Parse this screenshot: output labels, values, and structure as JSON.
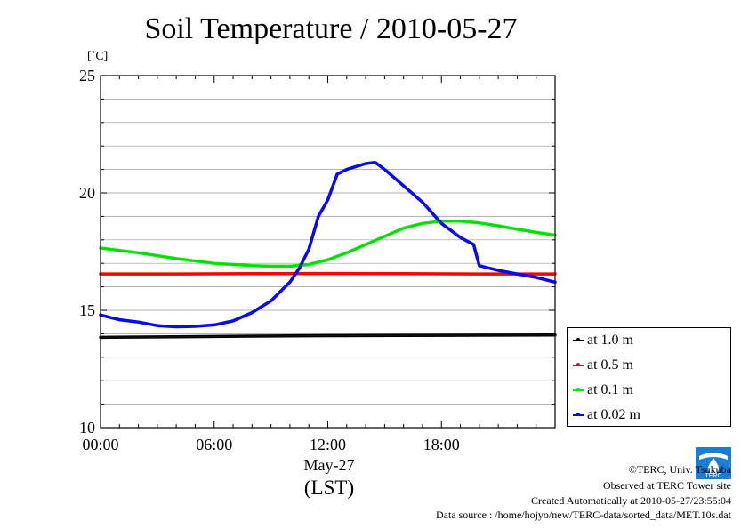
{
  "chart_data": {
    "type": "line",
    "title": "Soil Temperature / 2010-05-27",
    "ylabel": "[˚C]",
    "xlabel": "May-27",
    "xlabel2": "(LST)",
    "ylim": [
      10,
      25
    ],
    "xlim": [
      0,
      24
    ],
    "yticks": [
      "10",
      "15",
      "20",
      "25"
    ],
    "ytick_values": [
      10,
      15,
      20,
      25
    ],
    "xticks": [
      "00:00",
      "06:00",
      "12:00",
      "18:00"
    ],
    "xtick_values": [
      0,
      6,
      12,
      18
    ],
    "grid": true,
    "legend_position": "right-bottom",
    "series": [
      {
        "name": "at 1.0 m",
        "color": "#000000",
        "x": [
          0,
          4,
          8,
          12,
          16,
          20,
          24
        ],
        "y": [
          13.85,
          13.87,
          13.9,
          13.92,
          13.93,
          13.94,
          13.95
        ]
      },
      {
        "name": "at 0.5 m",
        "color": "#ff0000",
        "x": [
          0,
          4,
          8,
          12,
          16,
          20,
          24
        ],
        "y": [
          16.55,
          16.55,
          16.56,
          16.57,
          16.56,
          16.55,
          16.55
        ]
      },
      {
        "name": "at 0.1 m",
        "color": "#00ee00",
        "x": [
          0,
          2,
          4,
          6,
          8,
          9,
          10,
          11,
          12,
          13,
          14,
          15,
          16,
          17,
          18,
          19,
          20,
          21,
          22,
          23,
          24
        ],
        "y": [
          17.65,
          17.45,
          17.2,
          17.0,
          16.9,
          16.88,
          16.88,
          16.95,
          17.15,
          17.45,
          17.8,
          18.15,
          18.5,
          18.7,
          18.8,
          18.8,
          18.72,
          18.6,
          18.45,
          18.32,
          18.2
        ]
      },
      {
        "name": "at 0.02 m",
        "color": "#0000ff",
        "x": [
          0,
          1,
          2,
          3,
          4,
          5,
          6,
          7,
          8,
          9,
          10,
          10.5,
          11,
          11.5,
          12,
          12.5,
          13,
          14,
          14.5,
          15,
          16,
          17,
          18,
          19,
          19.7,
          20,
          21,
          22,
          23,
          24
        ],
        "y": [
          14.8,
          14.6,
          14.5,
          14.35,
          14.3,
          14.32,
          14.38,
          14.55,
          14.9,
          15.4,
          16.2,
          16.8,
          17.6,
          19.0,
          19.7,
          20.8,
          21.0,
          21.25,
          21.3,
          21.0,
          20.3,
          19.6,
          18.7,
          18.1,
          17.8,
          16.9,
          16.7,
          16.55,
          16.4,
          16.2
        ]
      }
    ]
  },
  "footer": {
    "credit_1": "©TERC, Univ. Tsukuba",
    "credit_2": "Observed at TERC Tower site",
    "credit_3": "Created Automatically at 2010-05-27/23:55:04",
    "credit_4": "Data source : /home/hojyo/new/TERC-data/sorted_data/MET.10s.dat",
    "logo_text": "TERC"
  }
}
